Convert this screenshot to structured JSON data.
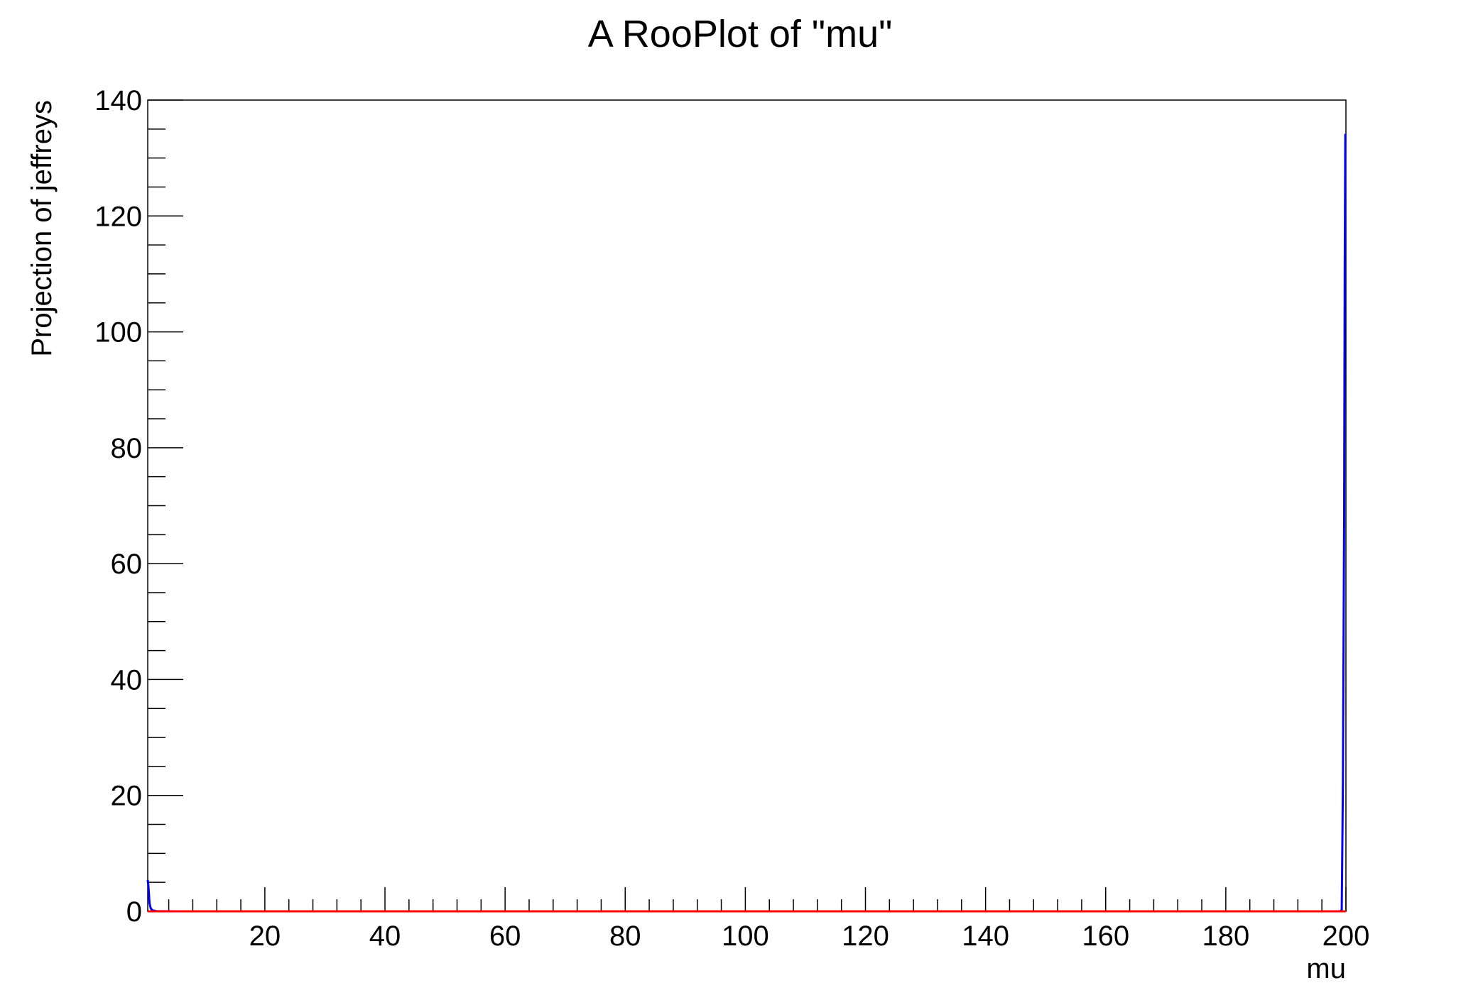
{
  "chart_data": {
    "type": "line",
    "title": "A RooPlot of \"mu\"",
    "xlabel": "mu",
    "ylabel": "Projection of jeffreys",
    "xlim": [
      0.5,
      200
    ],
    "ylim": [
      0,
      140
    ],
    "xticks": [
      20,
      40,
      60,
      80,
      100,
      120,
      140,
      160,
      180,
      200
    ],
    "yticks": [
      0,
      20,
      40,
      60,
      80,
      100,
      120,
      140
    ],
    "grid": false,
    "series": [
      {
        "color": "#0000ff",
        "x": [
          0.5,
          0.6,
          0.8,
          1.0,
          1.3,
          2.0,
          5.0,
          20,
          60,
          100,
          140,
          180,
          199.0,
          199.3,
          199.5,
          199.7,
          199.8,
          199.9,
          200.0
        ],
        "y": [
          5.4,
          4.6,
          1.4,
          0.5,
          0.15,
          0.03,
          0.005,
          0.0,
          0.0,
          0.0,
          0.0,
          0.0,
          0.0,
          0.2,
          22,
          67,
          111,
          134,
          134
        ]
      },
      {
        "color": "#ff0000",
        "x": [
          0.5,
          200
        ],
        "y": [
          0,
          0
        ]
      }
    ]
  }
}
